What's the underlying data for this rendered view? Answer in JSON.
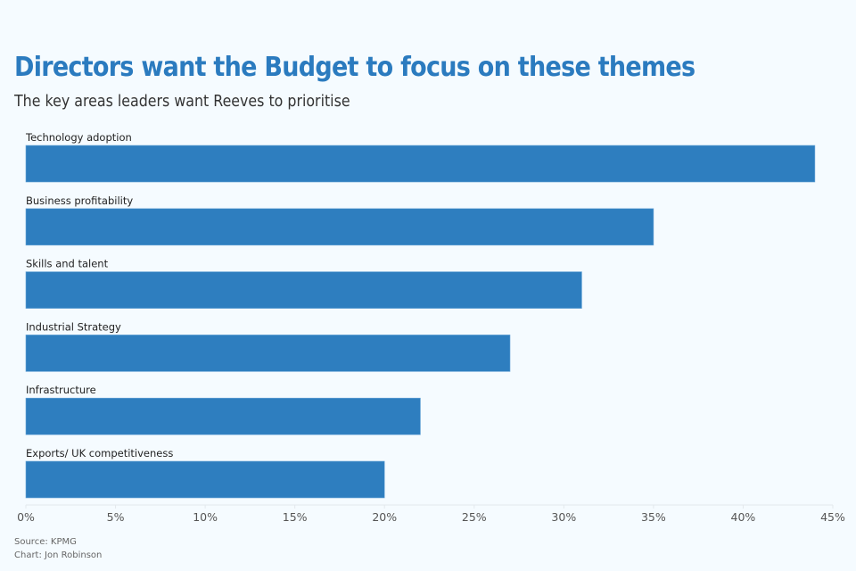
{
  "chart_data": {
    "type": "bar",
    "orientation": "horizontal",
    "title": "Directors want the Budget to focus on these themes",
    "subtitle": "The key areas leaders want Reeves to prioritise",
    "categories": [
      "Technology adoption",
      "Business profitability",
      "Skills and talent",
      "Industrial Strategy",
      "Infrastructure",
      "Exports/ UK competitiveness"
    ],
    "values": [
      44,
      35,
      31,
      27,
      22,
      20
    ],
    "unit": "%",
    "xlim": [
      0,
      45
    ],
    "xticks": [
      0,
      5,
      10,
      15,
      20,
      25,
      30,
      35,
      40,
      45
    ],
    "xtick_labels": [
      "0%",
      "5%",
      "10%",
      "15%",
      "20%",
      "25%",
      "30%",
      "35%",
      "40%",
      "45%"
    ],
    "xlabel": "",
    "ylabel": "",
    "grid": false,
    "bar_color": "#2e7ebf"
  },
  "footer": {
    "source": "Source: KPMG",
    "credit": "Chart: Jon Robinson"
  }
}
